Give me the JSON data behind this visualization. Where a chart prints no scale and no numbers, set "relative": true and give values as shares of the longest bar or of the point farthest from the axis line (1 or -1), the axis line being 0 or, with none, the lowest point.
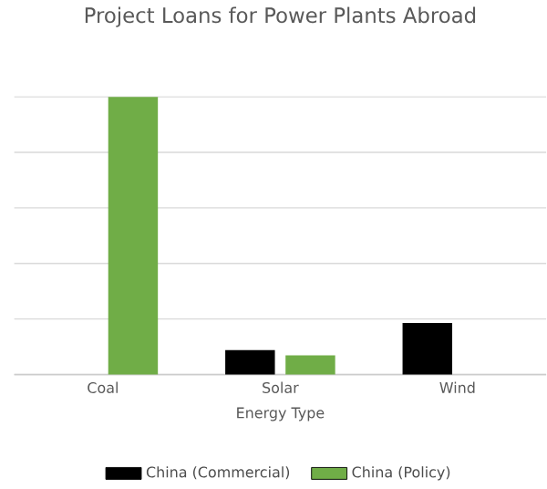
{
  "chart_data": {
    "type": "bar",
    "title": "Project Loans for Power Plants Abroad",
    "xlabel": "Energy Type",
    "categories": [
      "Coal",
      "Solar",
      "Wind"
    ],
    "series": [
      {
        "name": "China (Commercial)",
        "color": "#000000",
        "values": [
          null,
          0.088,
          0.186
        ]
      },
      {
        "name": "China (Policy)",
        "color": "#70ad47",
        "values": [
          1,
          0.069,
          null
        ]
      }
    ],
    "relative": true,
    "grid": "y",
    "legend": "bottom"
  }
}
